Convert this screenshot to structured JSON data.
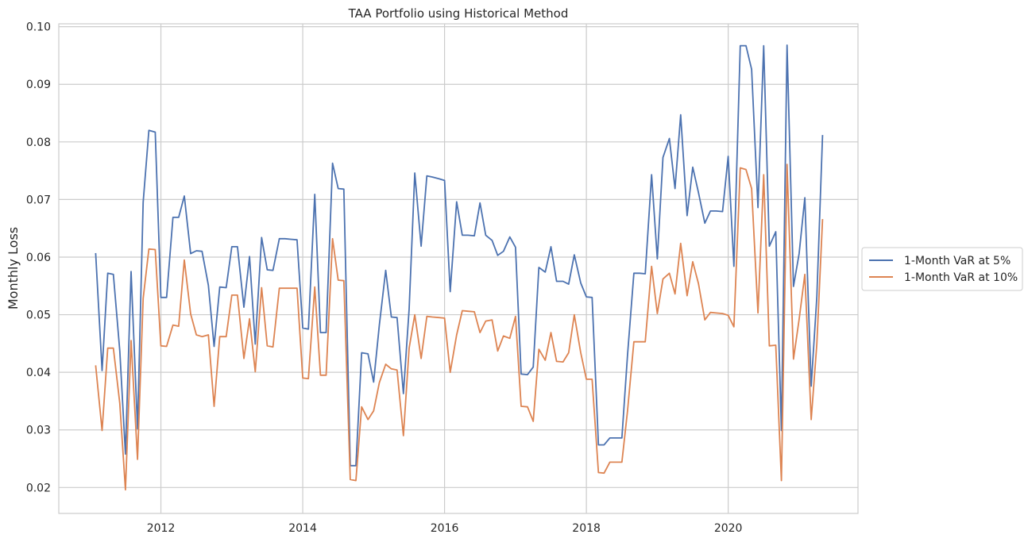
{
  "chart_data": {
    "type": "line",
    "title": "TAA Portfolio using Historical Method",
    "xlabel": "",
    "ylabel": "Monthly Loss",
    "xlim": [
      2010.56,
      2021.83
    ],
    "ylim": [
      0.0155,
      0.1005
    ],
    "x_ticks": [
      2012,
      2014,
      2016,
      2018,
      2020
    ],
    "x_tick_labels": [
      "2012",
      "2014",
      "2016",
      "2018",
      "2020"
    ],
    "y_ticks": [
      0.02,
      0.03,
      0.04,
      0.05,
      0.06,
      0.07,
      0.08,
      0.09,
      0.1
    ],
    "y_tick_labels": [
      "0.02",
      "0.03",
      "0.04",
      "0.05",
      "0.06",
      "0.07",
      "0.08",
      "0.09",
      "0.10"
    ],
    "grid": true,
    "legend_position": "center-right outside",
    "x": [
      2011.08,
      2011.17,
      2011.25,
      2011.33,
      2011.42,
      2011.5,
      2011.58,
      2011.67,
      2011.75,
      2011.83,
      2011.92,
      2012.0,
      2012.08,
      2012.17,
      2012.25,
      2012.33,
      2012.42,
      2012.5,
      2012.58,
      2012.67,
      2012.75,
      2012.83,
      2012.92,
      2013.0,
      2013.08,
      2013.17,
      2013.25,
      2013.33,
      2013.42,
      2013.5,
      2013.58,
      2013.67,
      2013.75,
      2013.83,
      2013.92,
      2014.0,
      2014.08,
      2014.17,
      2014.25,
      2014.33,
      2014.42,
      2014.5,
      2014.58,
      2014.67,
      2014.75,
      2014.83,
      2014.92,
      2015.0,
      2015.08,
      2015.17,
      2015.25,
      2015.33,
      2015.42,
      2015.5,
      2015.58,
      2015.67,
      2015.75,
      2015.83,
      2015.92,
      2016.0,
      2016.08,
      2016.17,
      2016.25,
      2016.33,
      2016.42,
      2016.5,
      2016.58,
      2016.67,
      2016.75,
      2016.83,
      2016.92,
      2017.0,
      2017.08,
      2017.17,
      2017.25,
      2017.33,
      2017.42,
      2017.5,
      2017.58,
      2017.67,
      2017.75,
      2017.83,
      2017.92,
      2018.0,
      2018.08,
      2018.17,
      2018.25,
      2018.33,
      2018.42,
      2018.5,
      2018.58,
      2018.67,
      2018.75,
      2018.83,
      2018.92,
      2019.0,
      2019.08,
      2019.17,
      2019.25,
      2019.33,
      2019.42,
      2019.5,
      2019.58,
      2019.67,
      2019.75,
      2019.83,
      2019.92,
      2020.0,
      2020.08,
      2020.17,
      2020.25,
      2020.33,
      2020.42,
      2020.5,
      2020.58,
      2020.67,
      2020.75,
      2020.83,
      2020.92,
      2021.0,
      2021.08,
      2021.17,
      2021.25,
      2021.33
    ],
    "series": [
      {
        "name": "1-Month VaR at 5%",
        "color": "#4c72b0",
        "values": [
          0.0607,
          0.0403,
          0.0572,
          0.057,
          0.0437,
          0.0258,
          0.0575,
          0.0302,
          0.0695,
          0.082,
          0.0817,
          0.053,
          0.053,
          0.0669,
          0.0669,
          0.0706,
          0.0606,
          0.0611,
          0.061,
          0.0551,
          0.0445,
          0.0548,
          0.0547,
          0.0618,
          0.0618,
          0.0513,
          0.0601,
          0.0449,
          0.0634,
          0.0578,
          0.0577,
          0.0632,
          0.0632,
          0.0631,
          0.063,
          0.0477,
          0.0475,
          0.0709,
          0.0469,
          0.0469,
          0.0763,
          0.0719,
          0.0718,
          0.0238,
          0.0238,
          0.0434,
          0.0432,
          0.0383,
          0.0482,
          0.0577,
          0.0496,
          0.0495,
          0.0363,
          0.051,
          0.0746,
          0.0619,
          0.0741,
          0.0739,
          0.0736,
          0.0733,
          0.054,
          0.0696,
          0.0638,
          0.0638,
          0.0637,
          0.0694,
          0.0638,
          0.0629,
          0.0603,
          0.061,
          0.0635,
          0.0617,
          0.0397,
          0.0396,
          0.0409,
          0.0582,
          0.0574,
          0.0618,
          0.0558,
          0.0558,
          0.0553,
          0.0604,
          0.0555,
          0.0531,
          0.053,
          0.0274,
          0.0274,
          0.0286,
          0.0286,
          0.0286,
          0.043,
          0.0572,
          0.0572,
          0.0571,
          0.0743,
          0.0597,
          0.0773,
          0.0806,
          0.0719,
          0.0847,
          0.0672,
          0.0756,
          0.0712,
          0.0659,
          0.068,
          0.068,
          0.0679,
          0.0775,
          0.0584,
          0.0967,
          0.0967,
          0.0926,
          0.0686,
          0.0967,
          0.0619,
          0.0644,
          0.0299,
          0.0968,
          0.0549,
          0.0606,
          0.0703,
          0.0376,
          0.0531,
          0.0812
        ]
      },
      {
        "name": "1-Month VaR at 10%",
        "color": "#dd8452",
        "values": [
          0.0412,
          0.0299,
          0.0442,
          0.0442,
          0.0346,
          0.0196,
          0.0455,
          0.0249,
          0.0528,
          0.0614,
          0.0613,
          0.0446,
          0.0445,
          0.0482,
          0.048,
          0.0595,
          0.0501,
          0.0465,
          0.0462,
          0.0465,
          0.0341,
          0.0462,
          0.0462,
          0.0534,
          0.0534,
          0.0424,
          0.0493,
          0.0401,
          0.0547,
          0.0446,
          0.0444,
          0.0546,
          0.0546,
          0.0546,
          0.0546,
          0.039,
          0.0389,
          0.0548,
          0.0395,
          0.0395,
          0.0632,
          0.056,
          0.0559,
          0.0214,
          0.0212,
          0.034,
          0.0318,
          0.0333,
          0.0382,
          0.0414,
          0.0406,
          0.0404,
          0.029,
          0.0442,
          0.05,
          0.0424,
          0.0497,
          0.0496,
          0.0495,
          0.0494,
          0.04,
          0.0465,
          0.0507,
          0.0506,
          0.0505,
          0.0469,
          0.0489,
          0.0491,
          0.0437,
          0.0463,
          0.0459,
          0.0497,
          0.0341,
          0.034,
          0.0315,
          0.044,
          0.0421,
          0.0469,
          0.0419,
          0.0418,
          0.0434,
          0.05,
          0.0434,
          0.0388,
          0.0388,
          0.0226,
          0.0225,
          0.0244,
          0.0244,
          0.0244,
          0.0333,
          0.0453,
          0.0453,
          0.0453,
          0.0584,
          0.0502,
          0.0562,
          0.0572,
          0.0536,
          0.0624,
          0.0533,
          0.0592,
          0.0554,
          0.0491,
          0.0504,
          0.0503,
          0.0502,
          0.0499,
          0.0479,
          0.0755,
          0.0752,
          0.0719,
          0.0503,
          0.0743,
          0.0446,
          0.0447,
          0.0212,
          0.0761,
          0.0423,
          0.0492,
          0.057,
          0.0318,
          0.0449,
          0.0666
        ]
      }
    ]
  }
}
